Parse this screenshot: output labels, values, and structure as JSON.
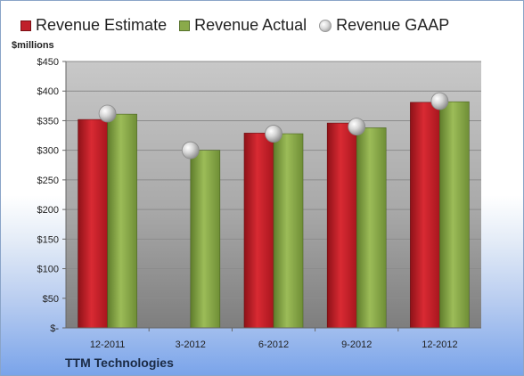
{
  "company": "TTM Technologies",
  "colors": {
    "estimate": "#c0202a",
    "actual": "#8aaa4a",
    "gaap": "#c8c8c8"
  },
  "chart_data": {
    "type": "bar",
    "title": "",
    "ylabel": "$millions",
    "xlabel": "",
    "categories": [
      "12-2011",
      "3-2012",
      "6-2012",
      "9-2012",
      "12-2012"
    ],
    "series": [
      {
        "name": "Revenue Estimate",
        "kind": "bar",
        "values": [
          352,
          null,
          329,
          346,
          381
        ]
      },
      {
        "name": "Revenue Actual",
        "kind": "bar",
        "values": [
          361,
          300,
          328,
          338,
          382
        ]
      },
      {
        "name": "Revenue GAAP",
        "kind": "point",
        "values": [
          362,
          300,
          328,
          340,
          383
        ]
      }
    ],
    "ylim": [
      0,
      450
    ],
    "yticks": [
      0,
      50,
      100,
      150,
      200,
      250,
      300,
      350,
      400,
      450
    ],
    "ytick_labels": [
      "$-",
      "$50",
      "$100",
      "$150",
      "$200",
      "$250",
      "$300",
      "$350",
      "$400",
      "$450"
    ],
    "legend_position": "top",
    "grid": true
  }
}
